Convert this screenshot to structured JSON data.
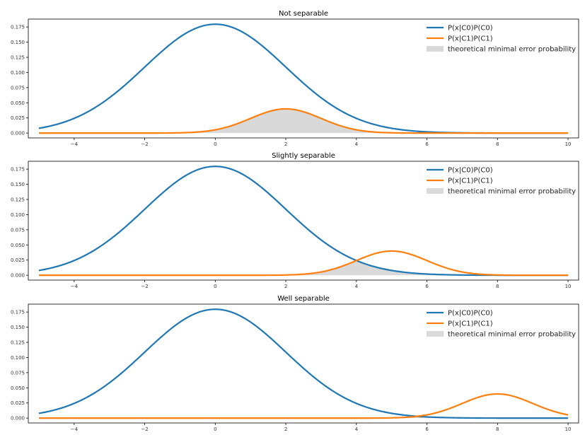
{
  "chart_data": [
    {
      "type": "line",
      "title": "Not separable",
      "xlim": [
        -5.3,
        10.3
      ],
      "ylim": [
        -0.008,
        0.188
      ],
      "xticks": [
        -4,
        -2,
        0,
        2,
        4,
        6,
        8,
        10
      ],
      "yticks": [
        0.0,
        0.025,
        0.05,
        0.075,
        0.1,
        0.125,
        0.15,
        0.175
      ],
      "legend_position": "top-right",
      "series": [
        {
          "name": "P(x|C0)P(C0)",
          "color": "#1f77b4",
          "prior": 0.9,
          "mean": 0,
          "sd": 2,
          "x_range": [
            -5,
            10
          ]
        },
        {
          "name": "P(x|C1)P(C1)",
          "color": "#ff7f0e",
          "prior": 0.1,
          "mean": 2,
          "sd": 1,
          "x_range": [
            -5,
            10
          ]
        }
      ],
      "fill": {
        "name": "theoretical minimal error probability",
        "color": "#d9d9d9"
      }
    },
    {
      "type": "line",
      "title": "Slightly separable",
      "xlim": [
        -5.3,
        10.3
      ],
      "ylim": [
        -0.008,
        0.188
      ],
      "xticks": [
        -4,
        -2,
        0,
        2,
        4,
        6,
        8,
        10
      ],
      "yticks": [
        0.0,
        0.025,
        0.05,
        0.075,
        0.1,
        0.125,
        0.15,
        0.175
      ],
      "legend_position": "top-right",
      "series": [
        {
          "name": "P(x|C0)P(C0)",
          "color": "#1f77b4",
          "prior": 0.9,
          "mean": 0,
          "sd": 2,
          "x_range": [
            -5,
            10
          ]
        },
        {
          "name": "P(x|C1)P(C1)",
          "color": "#ff7f0e",
          "prior": 0.1,
          "mean": 5,
          "sd": 1,
          "x_range": [
            -5,
            10
          ]
        }
      ],
      "fill": {
        "name": "theoretical minimal error probability",
        "color": "#d9d9d9"
      }
    },
    {
      "type": "line",
      "title": "Well separable",
      "xlim": [
        -5.3,
        10.3
      ],
      "ylim": [
        -0.008,
        0.188
      ],
      "xticks": [
        -4,
        -2,
        0,
        2,
        4,
        6,
        8,
        10
      ],
      "yticks": [
        0.0,
        0.025,
        0.05,
        0.075,
        0.1,
        0.125,
        0.15,
        0.175
      ],
      "legend_position": "top-right",
      "series": [
        {
          "name": "P(x|C0)P(C0)",
          "color": "#1f77b4",
          "prior": 0.9,
          "mean": 0,
          "sd": 2,
          "x_range": [
            -5,
            10
          ]
        },
        {
          "name": "P(x|C1)P(C1)",
          "color": "#ff7f0e",
          "prior": 0.1,
          "mean": 8,
          "sd": 1,
          "x_range": [
            -5,
            10
          ]
        }
      ],
      "fill": {
        "name": "theoretical minimal error probability",
        "color": "#d9d9d9"
      }
    }
  ]
}
